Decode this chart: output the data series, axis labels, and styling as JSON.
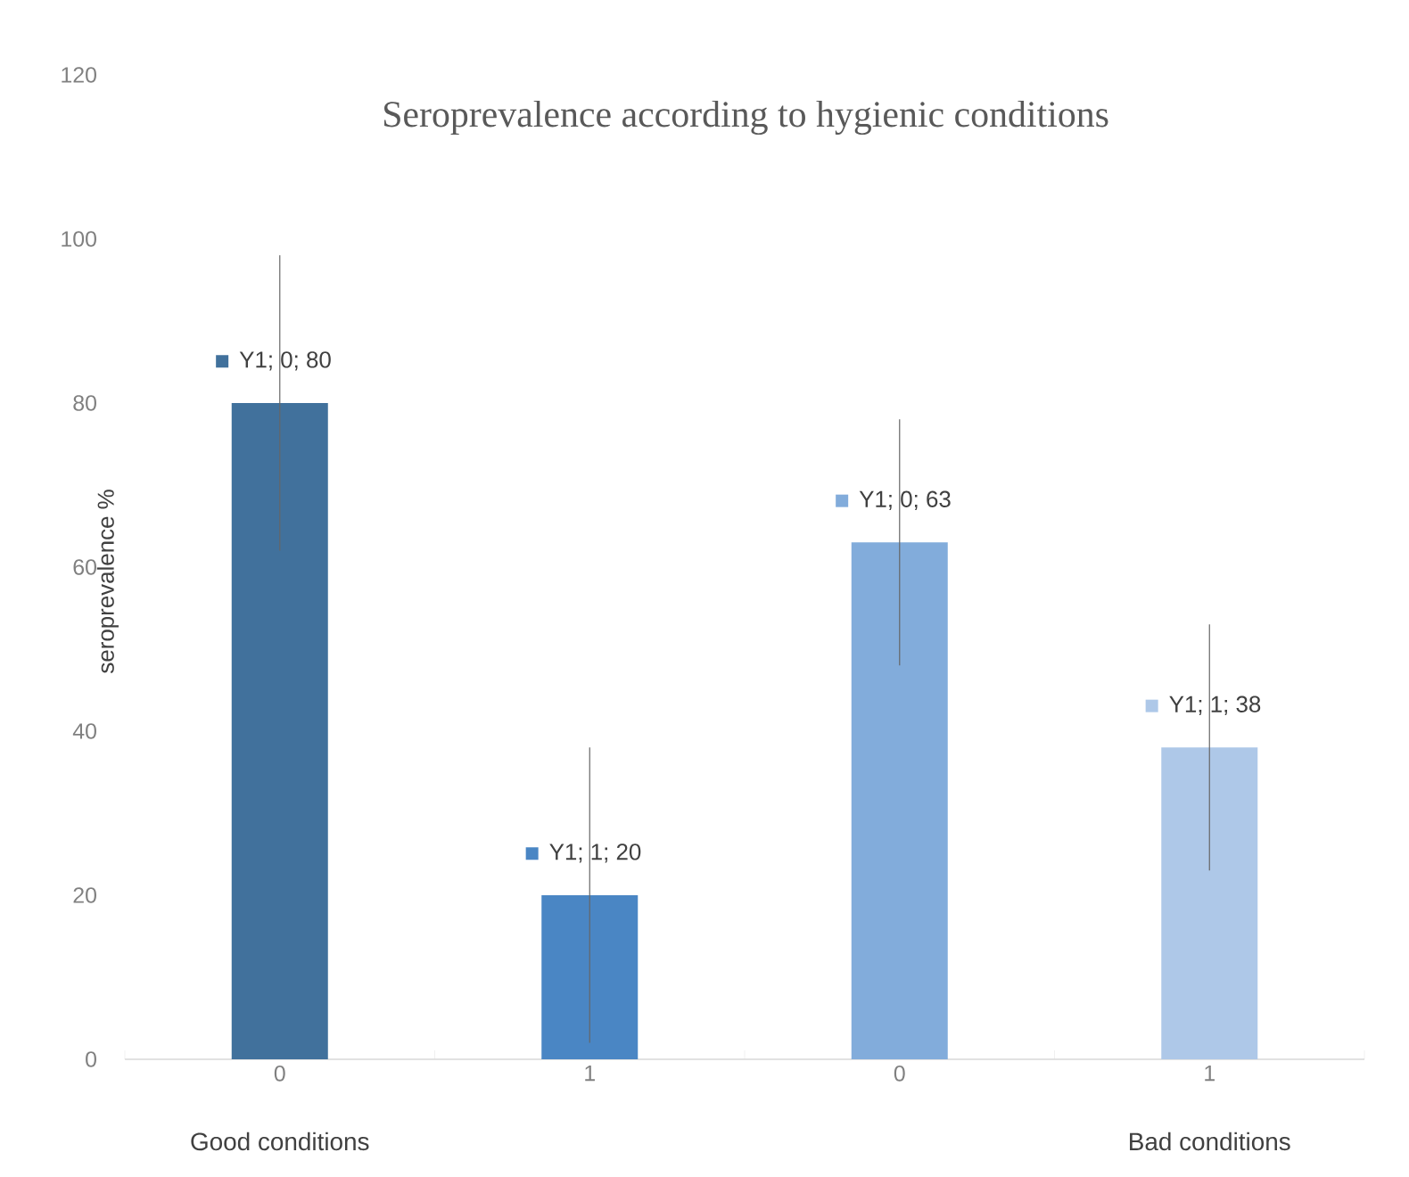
{
  "chart_data": {
    "type": "bar",
    "title": "Seroprevalence according to hygienic conditions",
    "ylabel": "seroprevalence %",
    "categories": [
      "0",
      "1",
      "0",
      "1"
    ],
    "values": [
      80,
      20,
      63,
      38
    ],
    "colors": [
      "#41719c",
      "#4a86c4",
      "#82acdb",
      "#aec8e8"
    ],
    "errors": [
      18,
      18,
      15,
      15
    ],
    "value_labels": [
      "Y1; 0; 80",
      "Y1; 1; 20",
      "Y1; 0; 63",
      "Y1; 1; 38"
    ],
    "ylim": [
      0,
      120
    ],
    "yticks": [
      0,
      20,
      40,
      60,
      80,
      100,
      120
    ],
    "annotations": [
      "Good conditions",
      "Bad conditions"
    ]
  }
}
